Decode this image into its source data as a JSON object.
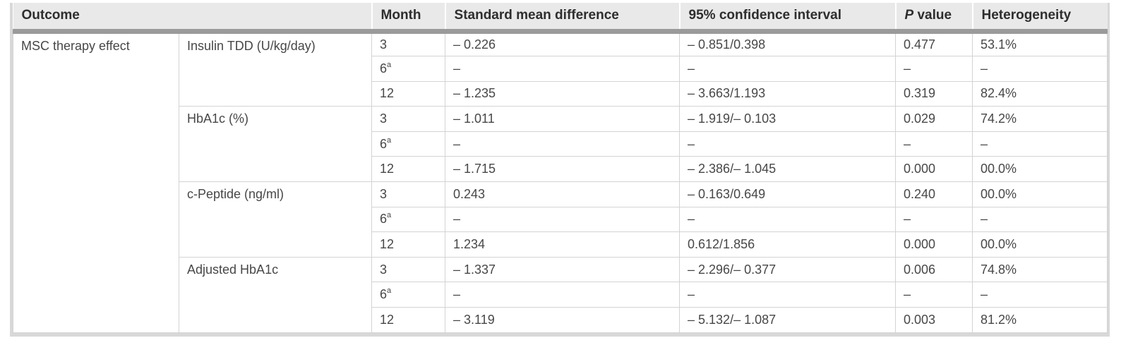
{
  "table": {
    "headers": {
      "outcome": "Outcome",
      "month": "Month",
      "smd": "Standard mean difference",
      "ci": "95% confidence interval",
      "p_prefix": "P",
      "p_suffix": " value",
      "heterogeneity": "Heterogeneity"
    },
    "outcome_cell": "MSC therapy effect",
    "groups": [
      {
        "measure": "Insulin TDD (U/kg/day)",
        "rows": [
          {
            "month": "3",
            "sup": "",
            "smd": "– 0.226",
            "ci": "– 0.851/0.398",
            "p": "0.477",
            "het": "53.1%"
          },
          {
            "month": "6",
            "sup": "a",
            "smd": "–",
            "ci": "–",
            "p": "–",
            "het": "–"
          },
          {
            "month": "12",
            "sup": "",
            "smd": "– 1.235",
            "ci": "– 3.663/1.193",
            "p": "0.319",
            "het": "82.4%"
          }
        ]
      },
      {
        "measure": "HbA1c (%)",
        "rows": [
          {
            "month": "3",
            "sup": "",
            "smd": "– 1.011",
            "ci": "– 1.919/– 0.103",
            "p": "0.029",
            "het": "74.2%"
          },
          {
            "month": "6",
            "sup": "a",
            "smd": "–",
            "ci": "–",
            "p": "–",
            "het": "–"
          },
          {
            "month": "12",
            "sup": "",
            "smd": "– 1.715",
            "ci": "– 2.386/– 1.045",
            "p": "0.000",
            "het": "00.0%"
          }
        ]
      },
      {
        "measure": "c-Peptide (ng/ml)",
        "rows": [
          {
            "month": "3",
            "sup": "",
            "smd": "0.243",
            "ci": "– 0.163/0.649",
            "p": "0.240",
            "het": "00.0%"
          },
          {
            "month": "6",
            "sup": "a",
            "smd": "–",
            "ci": "–",
            "p": "–",
            "het": "–"
          },
          {
            "month": "12",
            "sup": "",
            "smd": "1.234",
            "ci": "0.612/1.856",
            "p": "0.000",
            "het": "00.0%"
          }
        ]
      },
      {
        "measure": "Adjusted HbA1c",
        "rows": [
          {
            "month": "3",
            "sup": "",
            "smd": "– 1.337",
            "ci": "– 2.296/– 0.377",
            "p": "0.006",
            "het": "74.8%"
          },
          {
            "month": "6",
            "sup": "a",
            "smd": "–",
            "ci": "–",
            "p": "–",
            "het": "–"
          },
          {
            "month": "12",
            "sup": "",
            "smd": "– 3.119",
            "ci": "– 5.132/– 1.087",
            "p": "0.003",
            "het": "81.2%"
          }
        ]
      }
    ],
    "colors": {
      "header_bg": "#e9e9e9",
      "header_rule": "#9a9a9a",
      "cell_border": "#d3d3d3",
      "outer_border": "#d8d8d8",
      "header_text": "#2e2e2e",
      "body_text": "#474747"
    }
  }
}
